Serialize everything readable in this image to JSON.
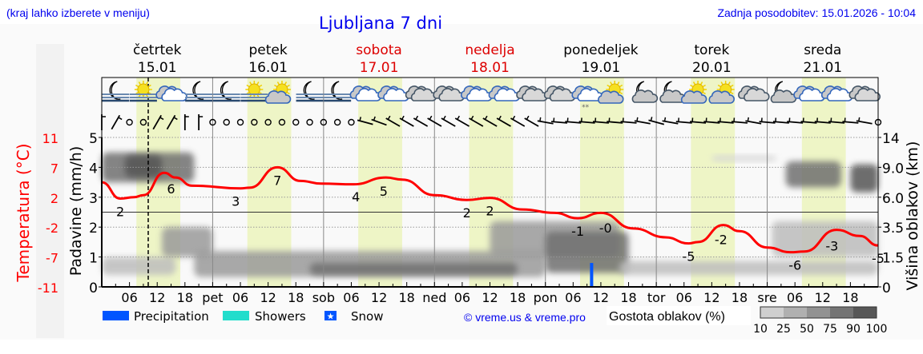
{
  "header": {
    "hint": "(kraj lahko izberete v meniju)",
    "title": "Ljubljana 7 dni",
    "updated": "Zadnja posodobitev: 15.01.2026 - 10:04"
  },
  "days": [
    {
      "name": "četrtek",
      "date": "15.01",
      "weekend": false
    },
    {
      "name": "petek",
      "date": "16.01",
      "weekend": false
    },
    {
      "name": "sobota",
      "date": "17.01",
      "weekend": true
    },
    {
      "name": "nedelja",
      "date": "18.01",
      "weekend": true
    },
    {
      "name": "ponedeljek",
      "date": "19.01",
      "weekend": false
    },
    {
      "name": "torek",
      "date": "20.01",
      "weekend": false
    },
    {
      "name": "sreda",
      "date": "21.01",
      "weekend": false
    }
  ],
  "legend": {
    "precipitation": "Precipitation",
    "showers": "Showers",
    "snow": "Snow",
    "copyright": "© vreme.us & vreme.pro",
    "cloud_density_label": "Gostota oblakov (%)",
    "cloud_density_ticks": [
      "10",
      "25",
      "50",
      "75",
      "90",
      "100"
    ],
    "cloud_density_colors": [
      "#cfcfcf",
      "#b0b0b0",
      "#929292",
      "#747474",
      "#575757"
    ]
  },
  "colors": {
    "temperature": "#ff0000",
    "precipitation": "#0055ff",
    "showers": "#22ddcc",
    "daylight": "#eef5c6",
    "weekend_text": "#dd0000",
    "link": "#0000ee"
  },
  "chart_data": {
    "type": "meteogram",
    "time_start": "15.01 00:00",
    "time_end": "22.01 00:00",
    "current_time": "15.01 10:04",
    "x_tick_labels": [
      "06",
      "12",
      "18",
      "pet",
      "06",
      "12",
      "18",
      "sob",
      "06",
      "12",
      "18",
      "ned",
      "06",
      "12",
      "18",
      "pon",
      "06",
      "12",
      "18",
      "tor",
      "06",
      "12",
      "18",
      "sre",
      "06",
      "12",
      "18"
    ],
    "daylight_hours": [
      7.5,
      17
    ],
    "left_axis_temperature": {
      "label": "Temperatura (°C)",
      "ticks": [
        "11",
        "7",
        "2",
        "-2",
        "-7",
        "-11"
      ],
      "range": [
        -11,
        11
      ]
    },
    "left_axis_precip": {
      "label": "Padavine (mm/h)",
      "ticks": [
        "5",
        "4",
        "3",
        "2",
        "1",
        "0"
      ],
      "range": [
        0,
        5
      ]
    },
    "right_axis_cloud_height": {
      "label": "Višina oblakov (km)",
      "ticks": [
        "14",
        "9.0",
        "6.0",
        "3.5",
        "1.5",
        "0"
      ]
    },
    "temperature": {
      "hours": [
        0,
        4,
        7,
        9,
        13.5,
        16,
        19.5,
        30,
        32,
        38,
        43,
        47.5,
        54.5,
        61.5,
        65,
        72,
        79,
        84,
        91,
        98,
        103,
        108,
        115,
        122,
        127,
        129,
        134.5,
        138,
        144,
        149,
        152,
        159,
        164,
        168
      ],
      "values": [
        4.4,
        2.0,
        2.2,
        2.5,
        5.8,
        5.1,
        3.9,
        3.5,
        3.6,
        6.6,
        4.6,
        4.2,
        4.1,
        5.1,
        4.8,
        2.5,
        1.8,
        2.1,
        0.4,
        -0.1,
        -0.9,
        -0.1,
        -2.4,
        -3.7,
        -4.6,
        -4.4,
        -1.9,
        -2.8,
        -5.2,
        -5.9,
        -5.8,
        -2.6,
        -3.5,
        -4.9
      ]
    },
    "temperature_labels": [
      {
        "hour": 4,
        "text": "2"
      },
      {
        "hour": 15,
        "text": "6"
      },
      {
        "hour": 29,
        "text": "3"
      },
      {
        "hour": 38,
        "text": "7"
      },
      {
        "hour": 55,
        "text": "4"
      },
      {
        "hour": 61,
        "text": "5"
      },
      {
        "hour": 79,
        "text": "2"
      },
      {
        "hour": 84,
        "text": "2"
      },
      {
        "hour": 103,
        "text": "-1"
      },
      {
        "hour": 109,
        "text": "-0"
      },
      {
        "hour": 127,
        "text": "-5"
      },
      {
        "hour": 134,
        "text": "-2"
      },
      {
        "hour": 150,
        "text": "-6"
      },
      {
        "hour": 158,
        "text": "-3"
      },
      {
        "hour": 168,
        "text": "-5"
      }
    ],
    "precipitation": [
      {
        "hour": 106,
        "type": "precipitation",
        "mm_h": 0.8
      }
    ],
    "cloud_layers": [
      {
        "from_h": 0,
        "to_h": 20,
        "base_km": 7.5,
        "top_km": 11.5,
        "density": 75
      },
      {
        "from_h": 5,
        "to_h": 13,
        "base_km": 8,
        "top_km": 11,
        "density": 90
      },
      {
        "from_h": 0,
        "to_h": 16,
        "base_km": 0.6,
        "top_km": 1.5,
        "density": 25
      },
      {
        "from_h": 13,
        "to_h": 24,
        "base_km": 1.5,
        "top_km": 3.5,
        "density": 50
      },
      {
        "from_h": 20,
        "to_h": 96,
        "base_km": 0.5,
        "top_km": 1.9,
        "density": 50
      },
      {
        "from_h": 45,
        "to_h": 90,
        "base_km": 0.6,
        "top_km": 1.2,
        "density": 75
      },
      {
        "from_h": 84,
        "to_h": 112,
        "base_km": 1.5,
        "top_km": 4,
        "density": 50
      },
      {
        "from_h": 96,
        "to_h": 114,
        "base_km": 0.7,
        "top_km": 3.2,
        "density": 75
      },
      {
        "from_h": 112,
        "to_h": 168,
        "base_km": 0.6,
        "top_km": 1.3,
        "density": 25
      },
      {
        "from_h": 145,
        "to_h": 168,
        "base_km": 1.5,
        "top_km": 4,
        "density": 25
      },
      {
        "from_h": 148,
        "to_h": 160,
        "base_km": 7,
        "top_km": 10,
        "density": 75
      },
      {
        "from_h": 162,
        "to_h": 168,
        "base_km": 6.5,
        "top_km": 9.5,
        "density": 90
      },
      {
        "from_h": 132,
        "to_h": 146,
        "base_km": 10,
        "top_km": 11,
        "density": 10
      }
    ],
    "weather_icons_6h": [
      "moon-fog",
      "sun-fog",
      "cloud",
      "moon-fog",
      "moon-fog",
      "sun-fog",
      "sun-cloud",
      "moon-fog",
      "moon-fog",
      "cloud",
      "cloud",
      "overcast",
      "overcast",
      "cloud",
      "cloud",
      "overcast",
      "overcast",
      "cloud-snow",
      "sun-cloud",
      "moon-cloud",
      "moon-cloud",
      "sun-cloud",
      "sun-cloud",
      "overcast",
      "moon-cloud",
      "cloud",
      "cloud",
      "overcast"
    ],
    "wind_from_deg_3h": [
      0,
      30,
      null,
      null,
      30,
      30,
      0,
      0,
      null,
      null,
      null,
      null,
      null,
      null,
      null,
      null,
      null,
      null,
      null,
      285,
      290,
      300,
      300,
      300,
      300,
      300,
      300,
      300,
      300,
      300,
      300,
      300,
      280,
      275,
      275,
      275,
      275,
      275,
      275,
      280,
      285,
      280,
      275,
      275,
      275,
      275,
      275,
      280,
      275,
      275,
      275,
      275,
      275,
      275,
      275,
      280,
      null
    ]
  }
}
